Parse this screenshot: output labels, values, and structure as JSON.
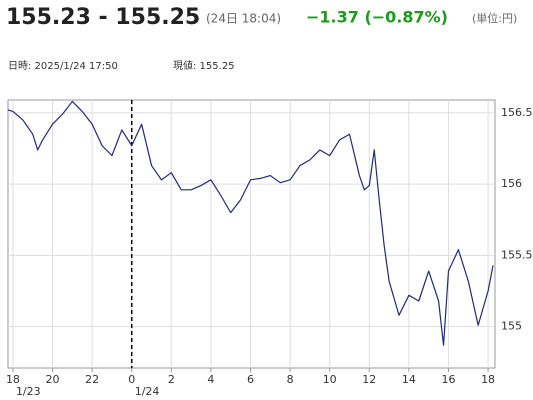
{
  "chart_data": {
    "type": "line",
    "quote": "155.23 - 155.25",
    "quote_time": "(24日 18:04)",
    "change": "−1.37 (−0.87%)",
    "unit_note": "(単位:円)",
    "cursor_time": "日時: 2025/1/24 17:50",
    "cursor_value": "現値: 155.25",
    "color": "#1f2a7a",
    "x": [
      17.75,
      18,
      18.5,
      19,
      19.25,
      19.5,
      20,
      20.5,
      21,
      21.5,
      22,
      22.5,
      23,
      23.5,
      24,
      24.5,
      25,
      25.5,
      26,
      26.5,
      27,
      27.5,
      28,
      28.5,
      29,
      29.5,
      30,
      30.5,
      31,
      31.5,
      32,
      32.5,
      33,
      33.5,
      34,
      34.5,
      35,
      35.5,
      35.75,
      36,
      36.25,
      36.5,
      36.75,
      37,
      37.5,
      38,
      38.5,
      39,
      39.5,
      39.75,
      40,
      40.5,
      41,
      41.5,
      42,
      42.25
    ],
    "values": [
      156.52,
      156.51,
      156.45,
      156.35,
      156.24,
      156.31,
      156.42,
      156.49,
      156.58,
      156.51,
      156.42,
      156.27,
      156.2,
      156.38,
      156.27,
      156.42,
      156.13,
      156.03,
      156.08,
      155.96,
      155.96,
      155.99,
      156.03,
      155.92,
      155.8,
      155.89,
      156.03,
      156.04,
      156.06,
      156.01,
      156.03,
      156.13,
      156.17,
      156.24,
      156.2,
      156.31,
      156.35,
      156.06,
      155.96,
      155.99,
      156.24,
      155.89,
      155.57,
      155.32,
      155.08,
      155.22,
      155.18,
      155.39,
      155.18,
      154.87,
      155.39,
      155.54,
      155.32,
      155.01,
      155.25,
      155.43
    ],
    "xlim": [
      17.75,
      42.35
    ],
    "ylim": [
      154.71,
      156.59
    ],
    "xticks": [
      18,
      20,
      22,
      {
        "value": 24,
        "label": "0"
      },
      {
        "value": 26,
        "label": "2"
      },
      {
        "value": 28,
        "label": "4"
      },
      {
        "value": 30,
        "label": "6"
      },
      {
        "value": 32,
        "label": "8"
      },
      {
        "value": 34,
        "label": "10"
      },
      {
        "value": 36,
        "label": "12"
      },
      {
        "value": 38,
        "label": "14"
      },
      {
        "value": 40,
        "label": "16"
      },
      {
        "value": 42,
        "label": "18"
      }
    ],
    "date_labels": [
      {
        "value": 18,
        "label": "1/23"
      },
      {
        "value": 24,
        "label": "1/24"
      }
    ],
    "day_divider": 24,
    "yticks": [
      155,
      155.5,
      156,
      156.5
    ],
    "grid": true
  }
}
